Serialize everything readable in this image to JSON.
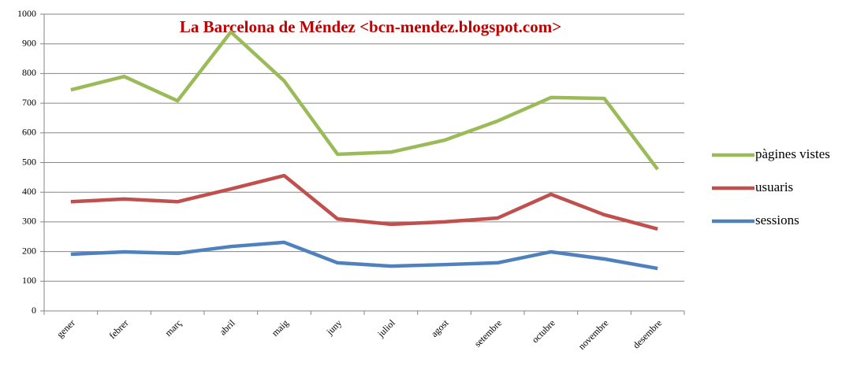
{
  "chart_data": {
    "type": "line",
    "title": "La Barcelona de Méndez  <bcn-mendez.blogspot.com>",
    "categories": [
      "gener",
      "febrer",
      "març",
      "abril",
      "maig",
      "juny",
      "juliol",
      "agost",
      "setembre",
      "octubre",
      "novembre",
      "desembre"
    ],
    "series": [
      {
        "name": "pàgines vistes",
        "color": "#9bbb59",
        "values": [
          745,
          790,
          708,
          940,
          775,
          528,
          535,
          575,
          640,
          719,
          716,
          477
        ]
      },
      {
        "name": "usuaris",
        "color": "#c0504d",
        "values": [
          368,
          377,
          368,
          411,
          456,
          310,
          292,
          300,
          313,
          393,
          324,
          276
        ]
      },
      {
        "name": "sessions",
        "color": "#4f81bd",
        "values": [
          191,
          199,
          194,
          217,
          231,
          162,
          151,
          156,
          162,
          199,
          175,
          143
        ]
      }
    ],
    "ylim": [
      0,
      1000
    ],
    "yticks": [
      0,
      100,
      200,
      300,
      400,
      500,
      600,
      700,
      800,
      900,
      1000
    ],
    "grid": true,
    "legend": "right"
  }
}
